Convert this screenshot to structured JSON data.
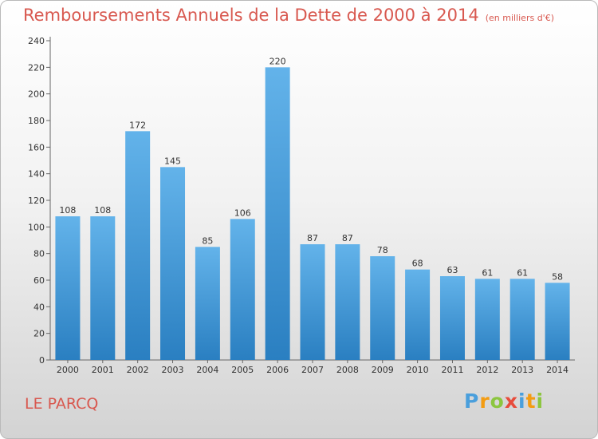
{
  "chart_data": {
    "type": "bar",
    "title": "Remboursements Annuels de la Dette de 2000 à 2014",
    "unit": "(en milliers d'€)",
    "categories": [
      "2000",
      "2001",
      "2002",
      "2003",
      "2004",
      "2005",
      "2006",
      "2007",
      "2008",
      "2009",
      "2010",
      "2011",
      "2012",
      "2013",
      "2014"
    ],
    "values": [
      108,
      108,
      172,
      145,
      85,
      106,
      220,
      87,
      87,
      78,
      68,
      63,
      61,
      61,
      58
    ],
    "ylim": [
      0,
      240
    ],
    "yticks": [
      0,
      20,
      40,
      60,
      80,
      100,
      120,
      140,
      160,
      180,
      200,
      220,
      240
    ],
    "grid": false,
    "bar_color": "#4a9fdc",
    "title_color": "#d8584f"
  },
  "commune": "LE PARCQ",
  "logo": {
    "text": "Proxiti",
    "letters": [
      {
        "ch": "P",
        "color": "#4a9fdc"
      },
      {
        "ch": "r",
        "color": "#f39c12"
      },
      {
        "ch": "o",
        "color": "#8cc63f"
      },
      {
        "ch": "x",
        "color": "#e74c3c"
      },
      {
        "ch": "i",
        "color": "#4a9fdc"
      },
      {
        "ch": "t",
        "color": "#f39c12"
      },
      {
        "ch": "i",
        "color": "#8cc63f"
      }
    ]
  }
}
